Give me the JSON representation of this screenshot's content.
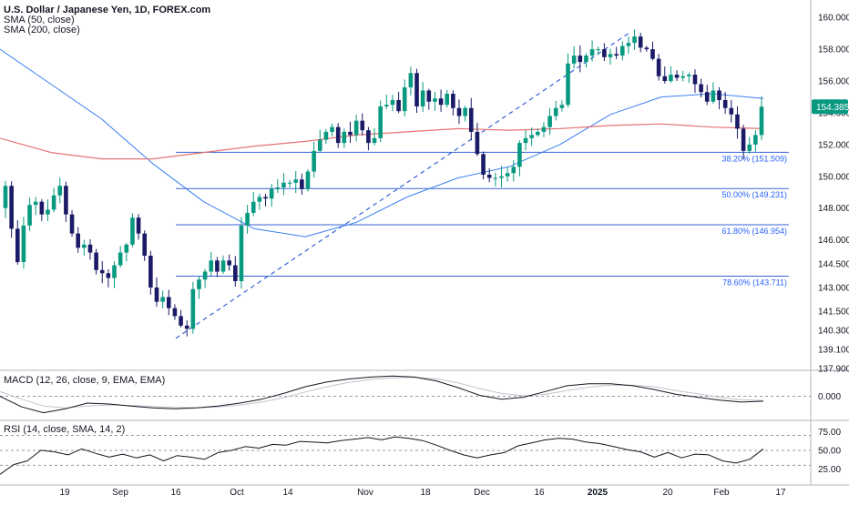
{
  "legend": {
    "title": "U.S. Dollar / Japanese Yen, 1D, FOREX.com",
    "sma50": "SMA (50, close)",
    "sma200": "SMA (200, close)",
    "macd": "MACD (12, 26, close, 9, EMA, EMA)",
    "rsi": "RSI (14, close, SMA, 14, 2)"
  },
  "colors": {
    "bull": "#089981",
    "bear": "#1a1a66",
    "sma50": "#3a7ff0",
    "sma200": "#e57373",
    "fib": "#3a62d8",
    "price_badge": "#089981"
  },
  "chart_data": {
    "type": "candlestick",
    "x_labels": [
      "19",
      "Sep",
      "16",
      "Oct",
      "14",
      "Nov",
      "18",
      "Dec",
      "16",
      "2025",
      "20",
      "Feb",
      "17"
    ],
    "y_ticks": [
      "160.000",
      "158.000",
      "156.000",
      "154.000",
      "152.000",
      "150.000",
      "148.000",
      "146.000",
      "144.500",
      "143.000",
      "141.500",
      "140.300",
      "139.100",
      "137.900"
    ],
    "ylim": [
      137.9,
      161.1
    ],
    "last_price": "154.385",
    "candles_close": [
      149.4,
      146.7,
      144.6,
      146.9,
      148.2,
      148.4,
      147.6,
      147.9,
      148.8,
      149.4,
      147.6,
      146.4,
      145.5,
      145.7,
      145.2,
      144.1,
      143.9,
      143.6,
      144.4,
      145.2,
      145.7,
      147.4,
      146.4,
      145.0,
      143.0,
      142.1,
      142.4,
      141.7,
      141.2,
      140.6,
      140.4,
      142.9,
      143.5,
      144.0,
      144.7,
      144.0,
      144.7,
      144.4,
      143.4,
      146.9,
      147.7,
      148.4,
      148.7,
      148.6,
      149.2,
      149.3,
      149.6,
      149.6,
      149.8,
      149.2,
      150.3,
      151.6,
      152.3,
      152.8,
      153.1,
      152.1,
      152.8,
      152.6,
      153.5,
      152.9,
      152.1,
      152.4,
      154.4,
      154.5,
      154.8,
      154.1,
      155.6,
      156.5,
      154.4,
      155.4,
      154.7,
      154.9,
      154.5,
      155.2,
      154.3,
      153.8,
      154.3,
      152.8,
      151.4,
      150.1,
      149.9,
      149.9,
      150.0,
      150.2,
      150.6,
      152.1,
      152.4,
      152.6,
      152.8,
      153.1,
      153.8,
      154.3,
      154.5,
      157.1,
      157.6,
      157.2,
      157.6,
      158.0,
      158.0,
      157.5,
      157.7,
      157.6,
      158.2,
      158.4,
      158.8,
      158.1,
      158.0,
      157.4,
      156.3,
      156.0,
      156.4,
      156.2,
      156.3,
      156.4,
      155.8,
      155.3,
      154.7,
      155.4,
      154.8,
      154.3,
      153.9,
      153.0,
      151.6,
      152.0,
      152.6,
      154.385
    ],
    "sma50": [
      158.0,
      155.8,
      153.6,
      150.8,
      148.4,
      146.7,
      146.2,
      147.1,
      148.7,
      149.9,
      150.6,
      152.0,
      153.9,
      155.0,
      155.2,
      154.9
    ],
    "sma200": [
      152.4,
      151.5,
      151.1,
      151.1,
      151.5,
      151.9,
      152.2,
      152.6,
      152.8,
      153.0,
      152.9,
      153.0,
      153.2,
      153.3,
      153.1,
      153.0
    ],
    "fib_levels": [
      {
        "label": "38.20% (151.509)",
        "value": 151.509
      },
      {
        "label": "50.00% (149.231)",
        "value": 149.231
      },
      {
        "label": "61.80% (146.954)",
        "value": 146.954
      },
      {
        "label": "78.60% (143.711)",
        "value": 143.711
      }
    ],
    "trendline": {
      "from": 139.8,
      "to": 159.0
    },
    "macd": {
      "y_ticks": [
        "0.000"
      ],
      "macd_line": [
        0.0,
        -1.1,
        -1.7,
        -1.3,
        -0.7,
        -0.8,
        -1.0,
        -1.2,
        -1.3,
        -1.2,
        -1.0,
        -0.7,
        -0.3,
        0.3,
        1.0,
        1.5,
        1.8,
        2.0,
        2.1,
        2.0,
        1.6,
        0.9,
        0.1,
        -0.3,
        -0.1,
        0.5,
        1.1,
        1.3,
        1.3,
        1.1,
        0.7,
        0.2,
        -0.1,
        -0.4,
        -0.6,
        -0.5
      ],
      "signal_line": [
        0.5,
        -0.3,
        -1.0,
        -1.2,
        -1.0,
        -0.9,
        -0.95,
        -1.05,
        -1.15,
        -1.18,
        -1.1,
        -0.9,
        -0.6,
        -0.15,
        0.45,
        1.0,
        1.45,
        1.75,
        1.92,
        1.98,
        1.82,
        1.4,
        0.8,
        0.3,
        0.05,
        0.2,
        0.6,
        0.95,
        1.15,
        1.17,
        1.0,
        0.6,
        0.25,
        -0.1,
        -0.35,
        -0.45
      ]
    },
    "rsi": {
      "y_ticks": [
        "75.00",
        "50.00",
        "25.00"
      ],
      "upper": 70,
      "mid": 50,
      "lower": 30,
      "values": [
        18,
        31,
        36,
        50,
        48,
        44,
        52,
        46,
        41,
        45,
        40,
        44,
        36,
        43,
        41,
        38,
        47,
        50,
        55,
        53,
        58,
        57,
        62,
        61,
        60,
        63,
        65,
        67,
        64,
        68,
        66,
        63,
        57,
        50,
        44,
        40,
        44,
        47,
        56,
        60,
        64,
        66,
        65,
        61,
        59,
        55,
        51,
        48,
        41,
        47,
        40,
        45,
        44,
        36,
        33,
        38,
        52
      ]
    }
  }
}
